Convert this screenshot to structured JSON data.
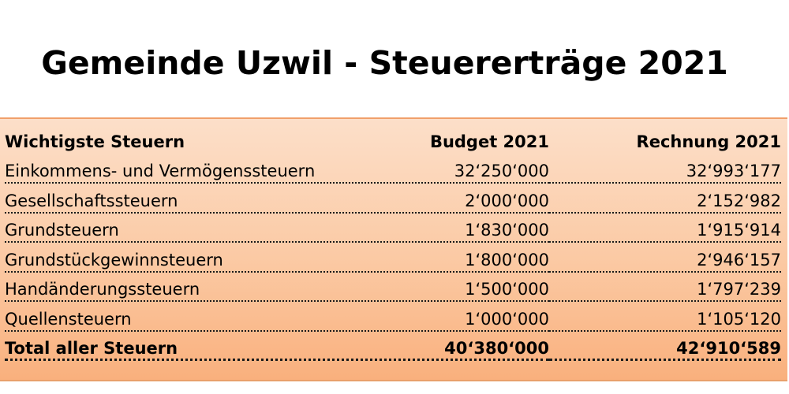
{
  "title": "Gemeinde Uzwil - Steuererträge 2021",
  "table": {
    "headers": {
      "name": "Wichtigste Steuern",
      "budget": "Budget 2021",
      "rechnung": "Rechnung 2021"
    },
    "rows": [
      {
        "name": "Einkommens- und Vermögenssteuern",
        "budget": "32‘250‘000",
        "rechnung": "32‘993‘177"
      },
      {
        "name": "Gesellschaftssteuern",
        "budget": "2‘000‘000",
        "rechnung": "2‘152‘982"
      },
      {
        "name": "Grundsteuern",
        "budget": "1‘830‘000",
        "rechnung": "1‘915‘914"
      },
      {
        "name": "Grundstückgewinnsteuern",
        "budget": "1‘800‘000",
        "rechnung": "2‘946‘157"
      },
      {
        "name": "Handänderungssteuern",
        "budget": "1‘500‘000",
        "rechnung": "1‘797‘239"
      },
      {
        "name": "Quellensteuern",
        "budget": "1‘000‘000",
        "rechnung": "1‘105‘120"
      }
    ],
    "total": {
      "name": "Total aller Steuern",
      "budget": "40‘380‘000",
      "rechnung": "42‘910‘589"
    }
  },
  "colors": {
    "panel_top": "#fcdfc9",
    "panel_bottom": "#f9b07d",
    "panel_border": "#f1a06a"
  }
}
